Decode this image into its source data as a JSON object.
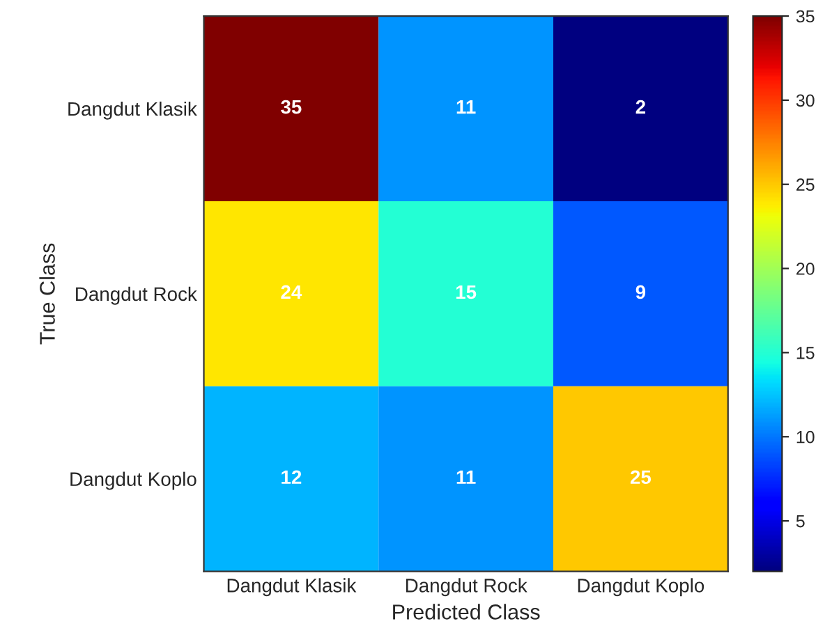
{
  "chart_data": {
    "type": "heatmap",
    "xlabel": "Predicted Class",
    "ylabel": "True Class",
    "categories": [
      "Dangdut Klasik",
      "Dangdut Rock",
      "Dangdut Koplo"
    ],
    "y_categories": [
      "Dangdut Klasik",
      "Dangdut Rock",
      "Dangdut Koplo"
    ],
    "cells": [
      [
        35,
        11,
        2
      ],
      [
        24,
        15,
        9
      ],
      [
        12,
        11,
        25
      ]
    ],
    "clim": [
      2,
      35
    ],
    "cticks": [
      5,
      10,
      15,
      20,
      25,
      30,
      35
    ],
    "data_labels": true
  }
}
